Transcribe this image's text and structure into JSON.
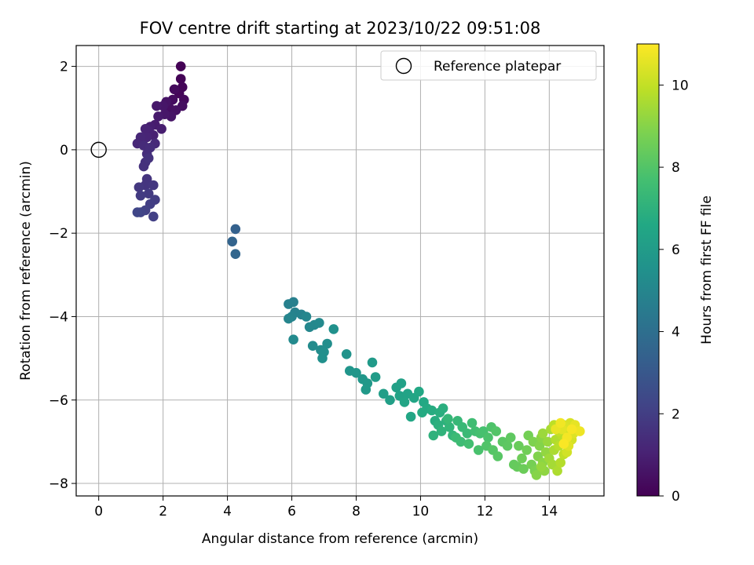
{
  "chart_data": {
    "type": "scatter",
    "title": "FOV centre drift starting at 2023/10/22 09:51:08",
    "xlabel": "Angular distance from reference (arcmin)",
    "ylabel": "Rotation from reference (arcmin)",
    "xlim": [
      -0.7,
      15.7
    ],
    "ylim": [
      -8.3,
      2.5
    ],
    "x_ticks": [
      0,
      2,
      4,
      6,
      8,
      10,
      12,
      14
    ],
    "y_ticks": [
      2,
      0,
      -2,
      -4,
      -6,
      -8
    ],
    "grid": true,
    "legend": {
      "position": "top-right",
      "entries": [
        "Reference platepar"
      ]
    },
    "reference": {
      "x": 0,
      "y": 0,
      "label": "Reference platepar"
    },
    "colorbar": {
      "label": "Hours from first FF file",
      "range": [
        0,
        11
      ],
      "ticks": [
        0,
        2,
        4,
        6,
        8,
        10
      ],
      "colormap": "viridis"
    },
    "points": [
      [
        2.55,
        2.0,
        0.02
      ],
      [
        2.55,
        1.7,
        0.08
      ],
      [
        2.6,
        1.5,
        0.12
      ],
      [
        2.5,
        1.35,
        0.18
      ],
      [
        2.65,
        1.2,
        0.25
      ],
      [
        2.35,
        1.45,
        0.3
      ],
      [
        2.3,
        1.2,
        0.35
      ],
      [
        2.6,
        1.05,
        0.4
      ],
      [
        2.2,
        1.0,
        0.45
      ],
      [
        2.4,
        0.95,
        0.5
      ],
      [
        2.1,
        1.15,
        0.55
      ],
      [
        2.25,
        0.8,
        0.6
      ],
      [
        2.0,
        1.05,
        0.65
      ],
      [
        2.05,
        0.85,
        0.7
      ],
      [
        1.8,
        1.05,
        0.75
      ],
      [
        1.85,
        0.8,
        0.8
      ],
      [
        1.75,
        0.6,
        0.85
      ],
      [
        1.95,
        0.5,
        0.9
      ],
      [
        1.6,
        0.55,
        0.95
      ],
      [
        1.7,
        0.35,
        1.0
      ],
      [
        1.55,
        0.45,
        1.05
      ],
      [
        1.45,
        0.5,
        1.1
      ],
      [
        1.5,
        0.3,
        1.15
      ],
      [
        1.3,
        0.3,
        1.2
      ],
      [
        1.2,
        0.15,
        1.25
      ],
      [
        1.75,
        0.15,
        1.3
      ],
      [
        1.4,
        0.1,
        1.35
      ],
      [
        1.6,
        0.05,
        1.4
      ],
      [
        1.5,
        -0.1,
        1.45
      ],
      [
        1.45,
        -0.3,
        1.5
      ],
      [
        1.4,
        -0.4,
        1.55
      ],
      [
        1.55,
        -0.2,
        1.6
      ],
      [
        1.5,
        -0.7,
        1.65
      ],
      [
        1.45,
        -0.85,
        1.7
      ],
      [
        1.7,
        -0.85,
        1.75
      ],
      [
        1.25,
        -0.9,
        1.8
      ],
      [
        1.55,
        -1.05,
        1.85
      ],
      [
        1.3,
        -1.1,
        1.9
      ],
      [
        1.75,
        -1.2,
        1.95
      ],
      [
        1.6,
        -1.3,
        2.0
      ],
      [
        1.7,
        -1.6,
        2.05
      ],
      [
        1.45,
        -1.45,
        2.1
      ],
      [
        1.3,
        -1.5,
        2.2
      ],
      [
        1.2,
        -1.5,
        2.3
      ],
      [
        4.25,
        -1.9,
        3.4
      ],
      [
        4.15,
        -2.2,
        3.5
      ],
      [
        4.25,
        -2.5,
        3.6
      ],
      [
        6.05,
        -3.65,
        4.7
      ],
      [
        5.9,
        -3.7,
        4.75
      ],
      [
        6.1,
        -3.9,
        4.8
      ],
      [
        6.3,
        -3.95,
        4.85
      ],
      [
        6.0,
        -4.0,
        4.9
      ],
      [
        5.9,
        -4.05,
        4.95
      ],
      [
        6.45,
        -4.0,
        5.0
      ],
      [
        6.55,
        -4.25,
        5.05
      ],
      [
        6.7,
        -4.2,
        5.1
      ],
      [
        6.85,
        -4.15,
        5.15
      ],
      [
        6.05,
        -4.55,
        5.2
      ],
      [
        6.65,
        -4.7,
        5.25
      ],
      [
        6.9,
        -4.8,
        5.3
      ],
      [
        7.1,
        -4.65,
        5.35
      ],
      [
        7.0,
        -4.85,
        5.4
      ],
      [
        6.95,
        -5.0,
        5.45
      ],
      [
        7.3,
        -4.3,
        5.5
      ],
      [
        7.7,
        -4.9,
        5.6
      ],
      [
        7.8,
        -5.3,
        5.7
      ],
      [
        8.0,
        -5.35,
        5.75
      ],
      [
        8.2,
        -5.5,
        5.8
      ],
      [
        8.35,
        -5.6,
        5.85
      ],
      [
        8.3,
        -5.75,
        5.9
      ],
      [
        8.5,
        -5.1,
        5.95
      ],
      [
        8.6,
        -5.45,
        6.0
      ],
      [
        8.85,
        -5.85,
        6.1
      ],
      [
        9.05,
        -6.0,
        6.15
      ],
      [
        9.25,
        -5.7,
        6.2
      ],
      [
        9.4,
        -5.6,
        6.25
      ],
      [
        9.35,
        -5.9,
        6.3
      ],
      [
        9.6,
        -5.85,
        6.35
      ],
      [
        9.5,
        -6.05,
        6.4
      ],
      [
        9.8,
        -5.95,
        6.45
      ],
      [
        9.7,
        -6.4,
        6.5
      ],
      [
        9.95,
        -5.8,
        6.55
      ],
      [
        10.1,
        -6.05,
        6.6
      ],
      [
        10.2,
        -6.2,
        6.65
      ],
      [
        10.05,
        -6.3,
        6.7
      ],
      [
        10.35,
        -6.25,
        6.75
      ],
      [
        10.45,
        -6.5,
        6.8
      ],
      [
        10.6,
        -6.3,
        6.85
      ],
      [
        10.7,
        -6.2,
        6.9
      ],
      [
        10.55,
        -6.6,
        6.95
      ],
      [
        10.8,
        -6.5,
        7.0
      ],
      [
        10.4,
        -6.85,
        7.05
      ],
      [
        10.65,
        -6.75,
        7.1
      ],
      [
        10.9,
        -6.65,
        7.15
      ],
      [
        11.0,
        -6.85,
        7.2
      ],
      [
        10.85,
        -6.45,
        7.25
      ],
      [
        11.15,
        -6.5,
        7.3
      ],
      [
        11.3,
        -6.65,
        7.35
      ],
      [
        11.45,
        -6.8,
        7.4
      ],
      [
        11.1,
        -6.9,
        7.45
      ],
      [
        11.25,
        -7.0,
        7.5
      ],
      [
        11.6,
        -6.55,
        7.55
      ],
      [
        11.7,
        -6.75,
        7.6
      ],
      [
        11.5,
        -7.05,
        7.65
      ],
      [
        11.85,
        -6.8,
        7.7
      ],
      [
        11.95,
        -6.75,
        7.75
      ],
      [
        11.8,
        -7.2,
        7.8
      ],
      [
        12.1,
        -6.9,
        7.85
      ],
      [
        12.2,
        -6.65,
        7.9
      ],
      [
        12.05,
        -7.1,
        7.95
      ],
      [
        12.35,
        -6.75,
        8.0
      ],
      [
        12.25,
        -7.2,
        8.05
      ],
      [
        12.4,
        -7.35,
        8.1
      ],
      [
        12.55,
        -7.0,
        8.15
      ],
      [
        12.7,
        -7.1,
        8.2
      ],
      [
        12.8,
        -6.9,
        8.25
      ],
      [
        12.9,
        -7.55,
        8.35
      ],
      [
        13.0,
        -7.6,
        8.4
      ],
      [
        13.05,
        -7.1,
        8.45
      ],
      [
        13.2,
        -7.65,
        8.5
      ],
      [
        13.15,
        -7.4,
        8.55
      ],
      [
        13.3,
        -7.2,
        8.6
      ],
      [
        13.35,
        -6.85,
        8.65
      ],
      [
        13.45,
        -7.55,
        8.7
      ],
      [
        13.55,
        -7.7,
        8.8
      ],
      [
        13.5,
        -7.0,
        8.85
      ],
      [
        13.65,
        -7.35,
        8.9
      ],
      [
        13.7,
        -7.1,
        8.95
      ],
      [
        13.6,
        -7.8,
        9.0
      ],
      [
        13.75,
        -6.9,
        9.05
      ],
      [
        13.8,
        -7.5,
        9.1
      ],
      [
        13.85,
        -7.7,
        9.15
      ],
      [
        13.9,
        -7.25,
        9.2
      ],
      [
        13.75,
        -7.6,
        9.25
      ],
      [
        13.95,
        -7.0,
        9.3
      ],
      [
        13.8,
        -6.8,
        9.35
      ],
      [
        14.0,
        -7.4,
        9.4
      ],
      [
        14.1,
        -7.55,
        9.5
      ],
      [
        14.05,
        -6.7,
        9.55
      ],
      [
        14.15,
        -7.2,
        9.6
      ],
      [
        14.25,
        -7.7,
        9.65
      ],
      [
        14.2,
        -6.95,
        9.7
      ],
      [
        14.35,
        -7.5,
        9.75
      ],
      [
        14.3,
        -7.1,
        9.8
      ],
      [
        14.4,
        -6.85,
        9.85
      ],
      [
        14.15,
        -6.6,
        9.9
      ],
      [
        14.45,
        -7.3,
        9.95
      ],
      [
        14.3,
        -6.75,
        10.0
      ],
      [
        14.5,
        -7.0,
        10.05
      ],
      [
        14.45,
        -6.6,
        10.1
      ],
      [
        14.6,
        -6.75,
        10.2
      ],
      [
        14.55,
        -7.25,
        10.25
      ],
      [
        14.7,
        -6.95,
        10.3
      ],
      [
        14.65,
        -6.55,
        10.35
      ],
      [
        14.5,
        -6.65,
        10.4
      ],
      [
        14.75,
        -6.8,
        10.45
      ],
      [
        14.6,
        -7.1,
        10.5
      ],
      [
        14.4,
        -6.7,
        10.55
      ],
      [
        14.8,
        -6.6,
        10.6
      ],
      [
        14.2,
        -6.7,
        10.65
      ],
      [
        14.95,
        -6.75,
        10.75
      ],
      [
        14.35,
        -6.55,
        10.8
      ],
      [
        14.55,
        -6.9,
        10.85
      ],
      [
        14.7,
        -6.7,
        10.9
      ],
      [
        14.45,
        -7.05,
        10.95
      ]
    ]
  }
}
